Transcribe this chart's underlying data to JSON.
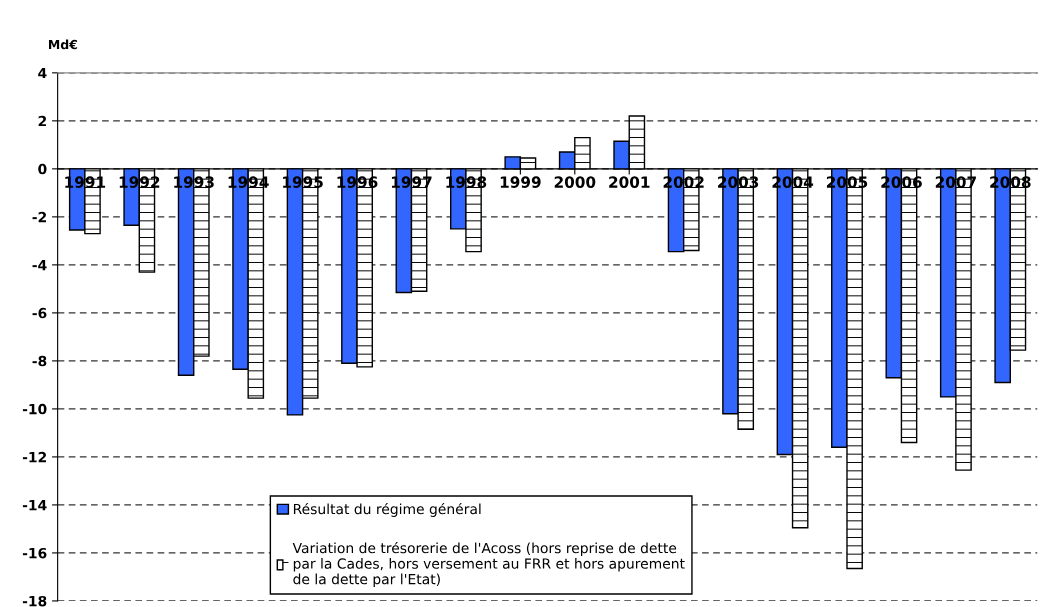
{
  "chart_data": {
    "type": "bar",
    "ylabel": "Md€",
    "categories": [
      "1991",
      "1992",
      "1993",
      "1994",
      "1995",
      "1996",
      "1997",
      "1998",
      "1999",
      "2000",
      "2001",
      "2002",
      "2003",
      "2004",
      "2005",
      "2006",
      "2007",
      "2008"
    ],
    "series": [
      {
        "name": "Résultat du régime général",
        "color": "#3366ff",
        "values": [
          -2.55,
          -2.35,
          -8.6,
          -8.35,
          -10.25,
          -8.1,
          -5.15,
          -2.5,
          0.5,
          0.7,
          1.15,
          -3.45,
          -10.2,
          -11.9,
          -11.6,
          -8.7,
          -9.5,
          -8.9
        ]
      },
      {
        "name": "Variation de trésorerie de l'Acoss (hors reprise de dette\npar la Cades, hors versement au FRR et hors apurement\nde la dette par l'Etat)",
        "color": "#ffffff",
        "values": [
          -2.7,
          -4.3,
          -7.8,
          -9.55,
          -9.55,
          -8.25,
          -5.1,
          -3.45,
          0.45,
          1.3,
          2.2,
          -3.4,
          -10.85,
          -14.95,
          -16.65,
          -11.4,
          -12.55,
          -7.55
        ]
      }
    ],
    "ylim": [
      -18,
      4
    ],
    "yticks": [
      -18,
      -16,
      -14,
      -12,
      -10,
      -8,
      -6,
      -4,
      -2,
      0,
      2,
      4
    ],
    "grid": "y",
    "legend": "bottom"
  }
}
